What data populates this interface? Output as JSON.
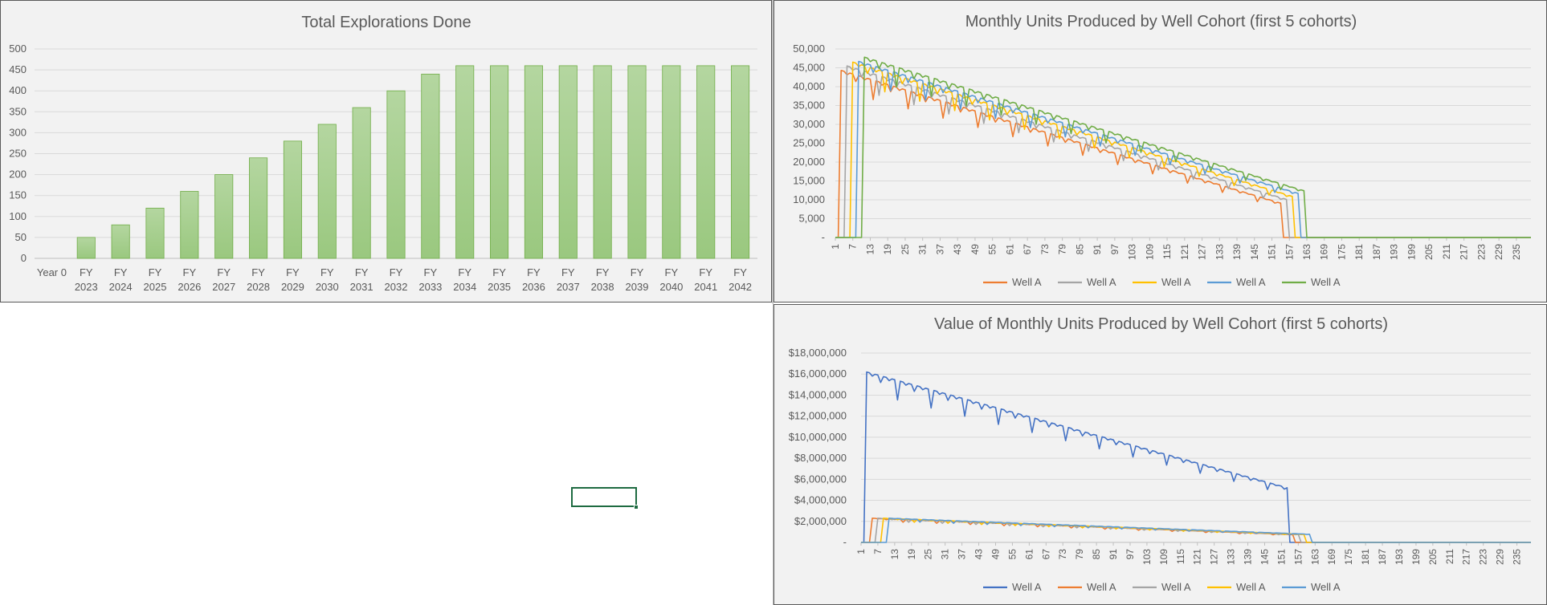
{
  "chart_data": [
    {
      "type": "bar",
      "title": "Total Explorations Done",
      "categories": [
        "Year 0",
        "FY 2023",
        "FY 2024",
        "FY 2025",
        "FY 2026",
        "FY 2027",
        "FY 2028",
        "FY 2029",
        "FY 2030",
        "FY 2031",
        "FY 2032",
        "FY 2033",
        "FY 2034",
        "FY 2035",
        "FY 2036",
        "FY 2037",
        "FY 2038",
        "FY 2039",
        "FY 2040",
        "FY 2041",
        "FY 2042"
      ],
      "values": [
        0,
        50,
        80,
        120,
        160,
        200,
        240,
        280,
        320,
        360,
        400,
        440,
        460,
        460,
        460,
        460,
        460,
        460,
        460,
        460,
        460
      ],
      "ylim": [
        0,
        500
      ],
      "yticks": [
        "0",
        "50",
        "100",
        "150",
        "200",
        "250",
        "300",
        "350",
        "400",
        "450",
        "500"
      ],
      "grid": true,
      "legend": "none",
      "color": "#a9d18e"
    },
    {
      "type": "line",
      "title": "Monthly Units Produced by Well Cohort (first 5 cohorts)",
      "x_range": [
        1,
        240
      ],
      "xticks": [
        "1",
        "7",
        "13",
        "19",
        "25",
        "31",
        "37",
        "43",
        "49",
        "55",
        "61",
        "67",
        "73",
        "79",
        "85",
        "91",
        "97",
        "103",
        "109",
        "115",
        "121",
        "127",
        "133",
        "139",
        "145",
        "151",
        "157",
        "163",
        "169",
        "175",
        "181",
        "187",
        "193",
        "199",
        "205",
        "211",
        "217",
        "223",
        "229",
        "235"
      ],
      "ylim": [
        0,
        50000
      ],
      "yticks": [
        "-",
        "5,000",
        "10,000",
        "15,000",
        "20,000",
        "25,000",
        "30,000",
        "35,000",
        "40,000",
        "45,000",
        "50,000"
      ],
      "grid": true,
      "legend": "bottom",
      "series": [
        {
          "name": "Well A",
          "color": "#ed7d31",
          "start": 3,
          "end": 154,
          "peak": 45500,
          "final": 10300,
          "offset": -1200
        },
        {
          "name": "Well A",
          "color": "#a5a5a5",
          "start": 5,
          "end": 156,
          "peak": 46000,
          "final": 10600,
          "offset": -500
        },
        {
          "name": "Well A",
          "color": "#ffc000",
          "start": 7,
          "end": 158,
          "peak": 46500,
          "final": 10900,
          "offset": 0
        },
        {
          "name": "Well A",
          "color": "#5b9bd5",
          "start": 9,
          "end": 160,
          "peak": 46200,
          "final": 11200,
          "offset": 500
        },
        {
          "name": "Well A",
          "color": "#70ad47",
          "start": 11,
          "end": 162,
          "peak": 46800,
          "final": 11400,
          "offset": 1000
        }
      ]
    },
    {
      "type": "line",
      "title": "Value of Monthly Units Produced by Well Cohort (first 5 cohorts)",
      "x_range": [
        1,
        240
      ],
      "xticks": [
        "1",
        "7",
        "13",
        "19",
        "25",
        "31",
        "37",
        "43",
        "49",
        "55",
        "61",
        "67",
        "73",
        "79",
        "85",
        "91",
        "97",
        "103",
        "109",
        "115",
        "121",
        "127",
        "133",
        "139",
        "145",
        "151",
        "157",
        "163",
        "169",
        "175",
        "181",
        "187",
        "193",
        "199",
        "205",
        "211",
        "217",
        "223",
        "229",
        "235"
      ],
      "ylim": [
        0,
        18000000
      ],
      "yticks": [
        "-",
        "$2,000,000",
        "$4,000,000",
        "$6,000,000",
        "$8,000,000",
        "$10,000,000",
        "$12,000,000",
        "$14,000,000",
        "$16,000,000",
        "$18,000,000"
      ],
      "grid": true,
      "legend": "bottom",
      "series": [
        {
          "name": "Well A",
          "color": "#4472c4",
          "start": 3,
          "end": 153,
          "peak": 16200000,
          "final": 5200000,
          "offset": 0
        },
        {
          "name": "Well A",
          "color": "#ed7d31",
          "start": 5,
          "end": 155,
          "peak": 2300000,
          "final": 750000,
          "offset": 0
        },
        {
          "name": "Well A",
          "color": "#a5a5a5",
          "start": 7,
          "end": 157,
          "peak": 2300000,
          "final": 760000,
          "offset": 0
        },
        {
          "name": "Well A",
          "color": "#ffc000",
          "start": 9,
          "end": 159,
          "peak": 2300000,
          "final": 770000,
          "offset": 0
        },
        {
          "name": "Well A",
          "color": "#5b9bd5",
          "start": 11,
          "end": 161,
          "peak": 2300000,
          "final": 780000,
          "offset": 0
        }
      ]
    }
  ]
}
